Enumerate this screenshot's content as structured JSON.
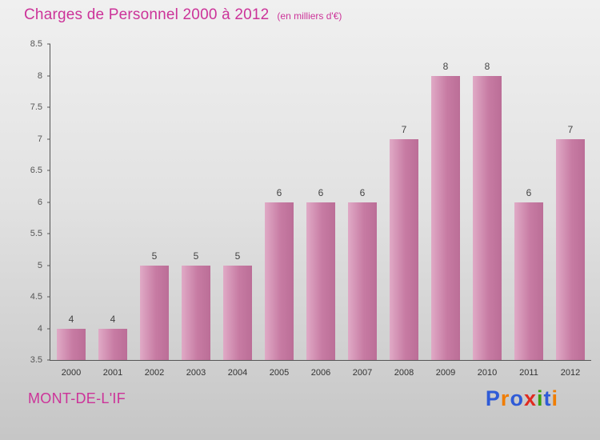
{
  "chart": {
    "title": "Charges de Personnel 2000 à 2012",
    "subtitle": "(en milliers d'€)"
  },
  "chart_data": {
    "type": "bar",
    "title": "Charges de Personnel 2000 à 2012",
    "subtitle": "(en milliers d'€)",
    "categories": [
      "2000",
      "2001",
      "2002",
      "2003",
      "2004",
      "2005",
      "2006",
      "2007",
      "2008",
      "2009",
      "2010",
      "2011",
      "2012"
    ],
    "values": [
      4,
      4,
      5,
      5,
      5,
      6,
      6,
      6,
      7,
      8,
      8,
      6,
      7
    ],
    "xlabel": "",
    "ylabel": "",
    "ylim": [
      3.5,
      8.5
    ],
    "ytick_step": 0.5,
    "grid": false,
    "legend": false,
    "value_labels": true,
    "bar_color": "#c77ba3",
    "bar_color_light": "#e0aac6"
  },
  "footer": {
    "location": "MONT-DE-L'IF",
    "logo_letters": [
      {
        "ch": "P",
        "color": "#2f5bd7"
      },
      {
        "ch": "r",
        "color": "#f07d00"
      },
      {
        "ch": "o",
        "color": "#2f5bd7"
      },
      {
        "ch": "x",
        "color": "#e02b20"
      },
      {
        "ch": "i",
        "color": "#3aa10f"
      },
      {
        "ch": "t",
        "color": "#2f5bd7"
      },
      {
        "ch": "i",
        "color": "#f07d00"
      }
    ]
  },
  "colors": {
    "title": "#cc3399",
    "axis": "#555555",
    "tick_label": "#555555",
    "value_label": "#444444"
  }
}
